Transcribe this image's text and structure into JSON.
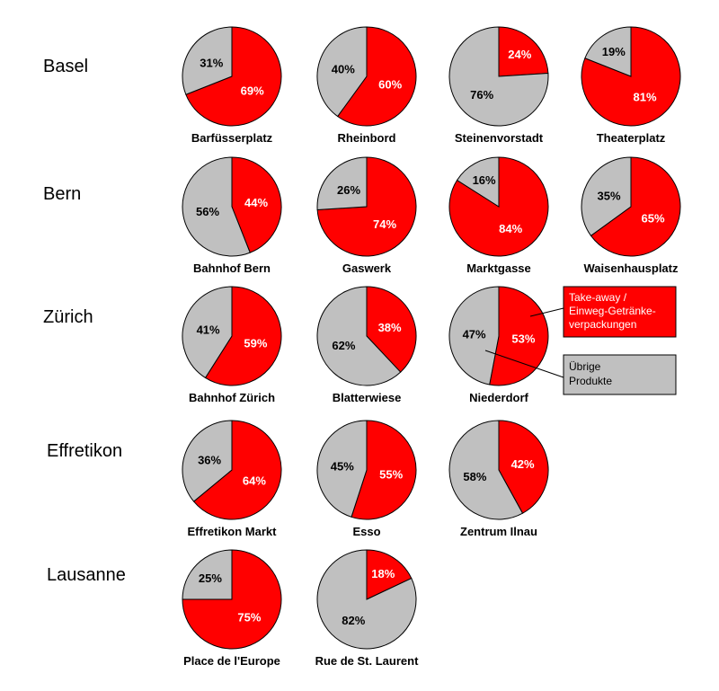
{
  "colors": {
    "takeaway": "#ff0000",
    "other": "#c0c0c0",
    "outline": "#000000"
  },
  "legend": {
    "takeaway_lines": [
      "Take-away /",
      "Einweg-Getränke-",
      "verpackungen"
    ],
    "other_lines": [
      "Übrige",
      "Produkte"
    ]
  },
  "chart_data": {
    "type": "pie",
    "series_names": [
      "Take-away / Einweg-Getränkeverpackungen",
      "Übrige Produkte"
    ],
    "groups": [
      {
        "city": "Basel",
        "sites": [
          {
            "name": "Barfüsserplatz",
            "takeaway": 69,
            "other": 31
          },
          {
            "name": "Rheinbord",
            "takeaway": 60,
            "other": 40
          },
          {
            "name": "Steinenvorstadt",
            "takeaway": 24,
            "other": 76
          },
          {
            "name": "Theaterplatz",
            "takeaway": 81,
            "other": 19
          }
        ]
      },
      {
        "city": "Bern",
        "sites": [
          {
            "name": "Bahnhof Bern",
            "takeaway": 44,
            "other": 56
          },
          {
            "name": "Gaswerk",
            "takeaway": 74,
            "other": 26
          },
          {
            "name": "Marktgasse",
            "takeaway": 84,
            "other": 16
          },
          {
            "name": "Waisenhausplatz",
            "takeaway": 65,
            "other": 35
          }
        ]
      },
      {
        "city": "Zürich",
        "sites": [
          {
            "name": "Bahnhof Zürich",
            "takeaway": 59,
            "other": 41
          },
          {
            "name": "Blatterwiese",
            "takeaway": 38,
            "other": 62
          },
          {
            "name": "Niederdorf",
            "takeaway": 53,
            "other": 47
          }
        ]
      },
      {
        "city": "Effretikon",
        "sites": [
          {
            "name": "Effretikon Markt",
            "takeaway": 64,
            "other": 36
          },
          {
            "name": "Esso",
            "takeaway": 55,
            "other": 45
          },
          {
            "name": "Zentrum Ilnau",
            "takeaway": 42,
            "other": 58
          }
        ]
      },
      {
        "city": "Lausanne",
        "sites": [
          {
            "name": "Place de l'Europe",
            "takeaway": 75,
            "other": 25
          },
          {
            "name": "Rue de St. Laurent",
            "takeaway": 18,
            "other": 82
          }
        ]
      }
    ]
  }
}
